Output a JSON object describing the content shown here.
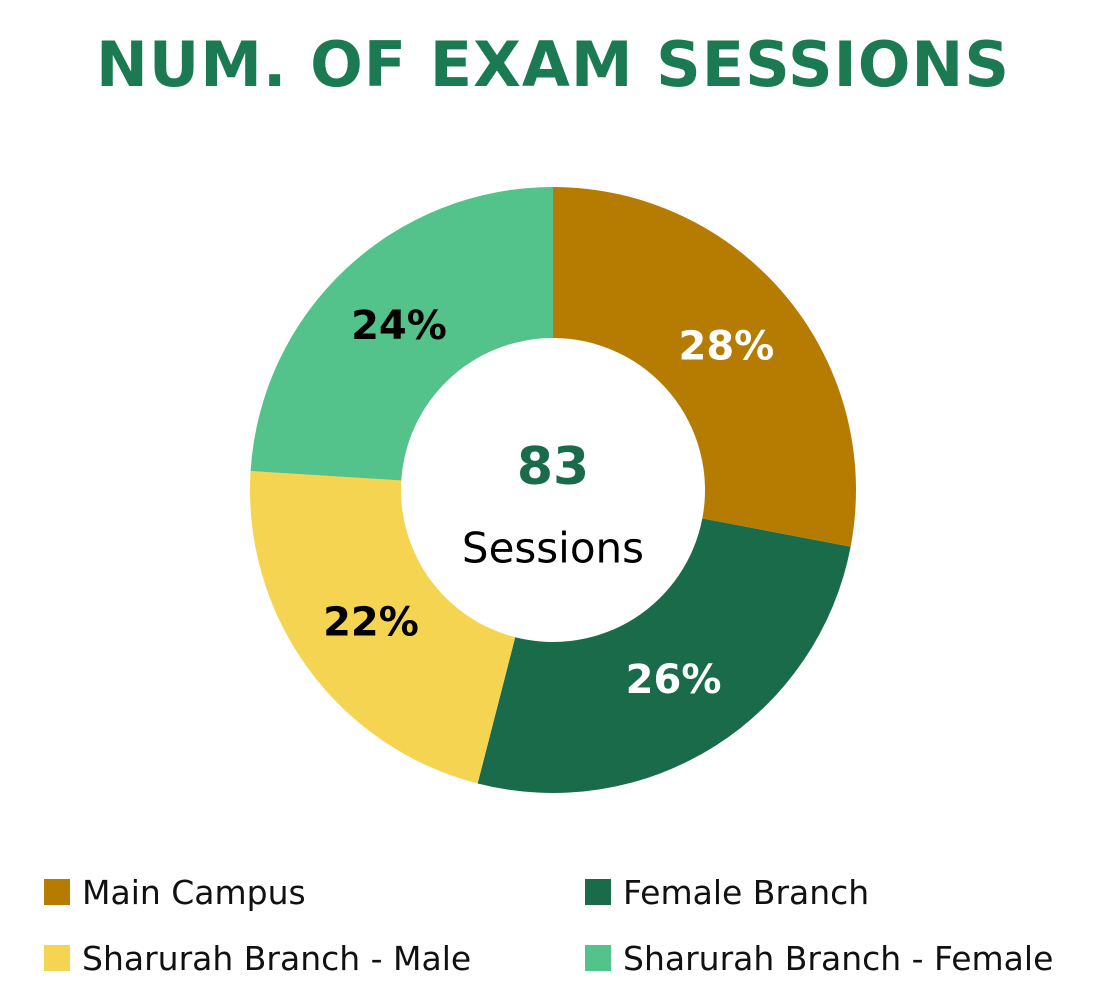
{
  "chart_data": {
    "type": "pie",
    "title": "NUM. OF EXAM SESSIONS",
    "center_value": "83",
    "center_label": "Sessions",
    "categories": [
      "Main Campus",
      "Female Branch",
      "Sharurah Branch - Male",
      "Sharurah Branch - Female"
    ],
    "values": [
      28,
      26,
      22,
      24
    ],
    "labels": [
      "28%",
      "26%",
      "22%",
      "24%"
    ],
    "colors": [
      "#B67C02",
      "#1A6B4A",
      "#F5D452",
      "#53C28B"
    ],
    "label_colors": [
      "#ffffff",
      "#ffffff",
      "#000000",
      "#000000"
    ],
    "legend_position": "bottom"
  },
  "theme": {
    "title_color": "#1C7A52",
    "center_value_color": "#1A6B4A",
    "center_label_color": "#000000"
  }
}
